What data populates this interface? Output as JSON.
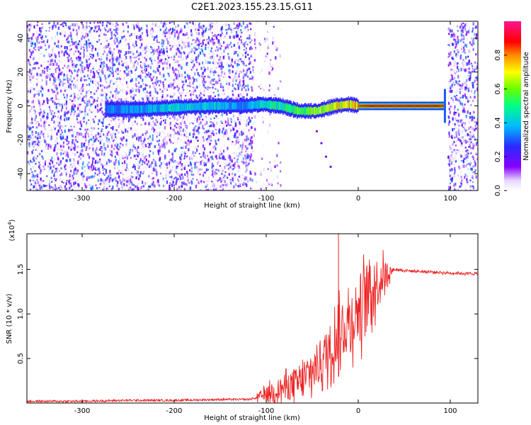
{
  "figure_title": "C2E1.2023.155.23.15.G11",
  "chart_data": [
    {
      "type": "heatmap",
      "title": "",
      "xlabel": "Height of straight line (km)",
      "ylabel": "Frequency (Hz)",
      "xlim": [
        -360,
        130
      ],
      "ylim": [
        -50,
        50
      ],
      "xticks": [
        -300,
        -200,
        -100,
        0,
        100
      ],
      "xtick_labels": [
        "-300",
        "-200",
        "-100",
        "0",
        "100"
      ],
      "yticks": [
        -40,
        -20,
        0,
        20,
        40
      ],
      "ytick_labels": [
        "-40",
        "-20",
        "0",
        "20",
        "40"
      ],
      "colorbar": {
        "label": "Normalized spectral amplitude",
        "range": [
          0,
          1
        ],
        "ticks": [
          0.0,
          0.2,
          0.4,
          0.6,
          0.8
        ],
        "tick_labels": [
          "0.0",
          "0.2",
          "0.4",
          "0.6",
          "0.8"
        ],
        "colormap": "rainbow (white-violet-blue-cyan-green-yellow-red-magenta)"
      },
      "noise_regions": [
        {
          "x_from": -360,
          "x_to": -115,
          "level": "dense"
        },
        {
          "x_from": -115,
          "x_to": -85,
          "level": "sparse"
        },
        {
          "x_from": 97,
          "x_to": 130,
          "level": "dense"
        }
      ],
      "signal_ridge": {
        "x": [
          -275,
          -240,
          -200,
          -160,
          -125,
          -105,
          -85,
          -65,
          -45,
          -25,
          -10,
          0,
          20,
          40,
          60,
          80,
          93
        ],
        "freq": [
          -2,
          -2,
          -1,
          0,
          0,
          1,
          0,
          -3,
          -3,
          0,
          1,
          0,
          0,
          0,
          0,
          0,
          0
        ],
        "amplitude": [
          0.35,
          0.4,
          0.45,
          0.45,
          0.35,
          0.5,
          0.55,
          0.6,
          0.65,
          0.75,
          0.8,
          0.85,
          0.9,
          0.9,
          0.9,
          0.9,
          0.85
        ]
      },
      "secondary_trace": {
        "x": [
          -45,
          -40,
          -35,
          -30
        ],
        "freq": [
          -15,
          -22,
          -30,
          -36
        ]
      }
    },
    {
      "type": "line",
      "title": "",
      "xlabel": "Height of straight line (km)",
      "ylabel": "SNR (10 * v/v)",
      "y_scale_label": "(x10",
      "y_scale_exponent": "4",
      "xlim": [
        -360,
        130
      ],
      "ylim": [
        0,
        1.9
      ],
      "xticks": [
        -300,
        -200,
        -100,
        0,
        100
      ],
      "xtick_labels": [
        "-300",
        "-200",
        "-100",
        "0",
        "100"
      ],
      "yticks": [
        0.5,
        1.0,
        1.5
      ],
      "ytick_labels": [
        "0.5",
        "1.0",
        "1.5"
      ],
      "color": "#ee2222",
      "series": [
        {
          "x": [
            -360,
            -300,
            -250,
            -200,
            -150,
            -120,
            -110,
            -100,
            -90,
            -80,
            -70,
            -60,
            -50,
            -40,
            -30,
            -25,
            -20,
            -15,
            -10,
            -5,
            0,
            10,
            20,
            30,
            40,
            60,
            80,
            100,
            130
          ],
          "y": [
            0.02,
            0.02,
            0.03,
            0.03,
            0.04,
            0.04,
            0.06,
            0.1,
            0.14,
            0.18,
            0.2,
            0.25,
            0.35,
            0.48,
            0.62,
            0.7,
            0.78,
            0.85,
            0.92,
            0.98,
            1.05,
            1.2,
            1.35,
            1.45,
            1.5,
            1.48,
            1.47,
            1.46,
            1.45
          ]
        }
      ],
      "spike": {
        "x": -21.5,
        "y": 1.9
      }
    }
  ]
}
